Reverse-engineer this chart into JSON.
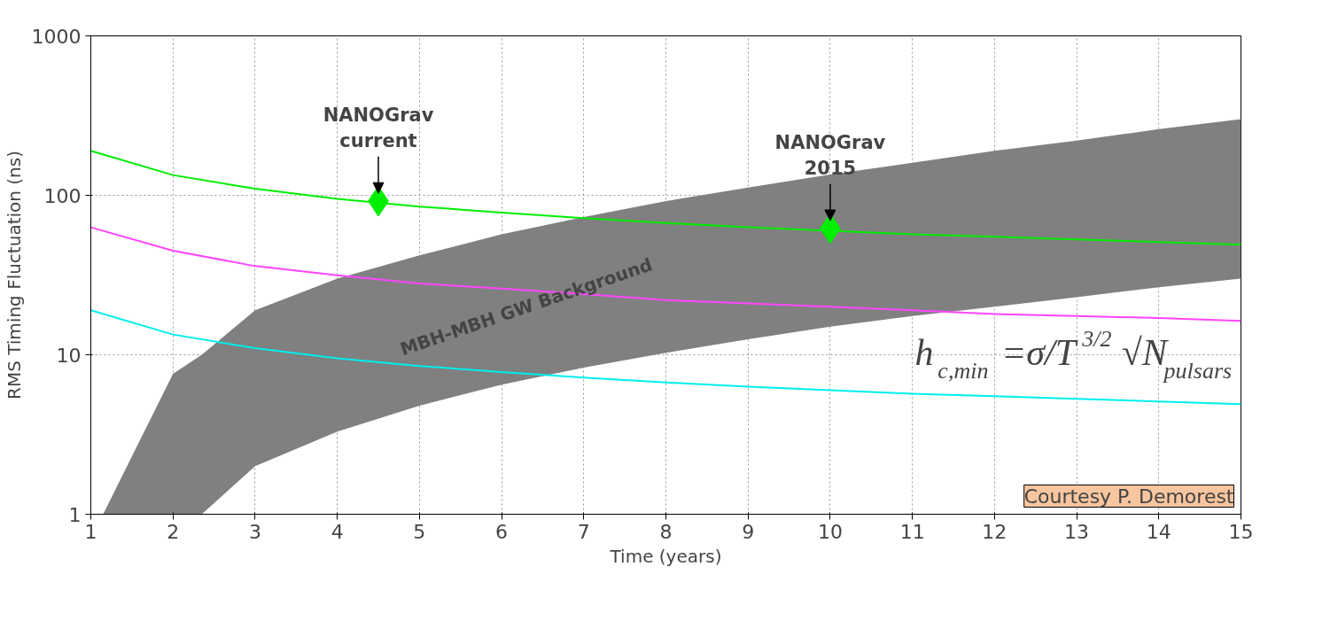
{
  "chart_data": {
    "type": "line",
    "xlabel": "Time (years)",
    "ylabel": "RMS Timing Fluctuation (ns)",
    "log": "y",
    "xlim": [
      1,
      15
    ],
    "ylim": [
      1,
      1000
    ],
    "xticks": [
      1,
      2,
      3,
      4,
      5,
      6,
      7,
      8,
      9,
      10,
      11,
      12,
      13,
      14,
      15
    ],
    "yticks": [
      1,
      10,
      100,
      1000
    ],
    "grid": true,
    "series": [
      {
        "color": "#808080",
        "x": [
          1.15,
          2,
          2.35,
          3,
          4,
          5,
          6,
          7,
          8,
          9,
          10,
          11,
          12,
          13,
          14,
          15
        ],
        "values": [
          null,
          null,
          null,
          null,
          null,
          null,
          null,
          null,
          null,
          null,
          null,
          null,
          null,
          null,
          null,
          null
        ],
        "lower": [
          1,
          1,
          1,
          2,
          3.3,
          4.8,
          6.5,
          8.3,
          10.3,
          12.5,
          15,
          17.5,
          20,
          23,
          26.5,
          30
        ],
        "upper": [
          1,
          7.6,
          10,
          19,
          30,
          42,
          57,
          73,
          92,
          112,
          135,
          160,
          190,
          220,
          260,
          300
        ]
      },
      {
        "color": "#00ee00",
        "x": [
          1,
          2,
          3,
          4,
          5,
          6,
          7,
          8,
          9,
          10,
          11,
          12,
          13,
          14,
          15
        ],
        "values": [
          190,
          134,
          110,
          95,
          85,
          78,
          72,
          67,
          63,
          60,
          57,
          55,
          53,
          51,
          49
        ]
      },
      {
        "color": "#ff44ff",
        "x": [
          1,
          2,
          3,
          4,
          5,
          6,
          7,
          8,
          9,
          10,
          11,
          12,
          13,
          14,
          15
        ],
        "values": [
          63,
          45,
          36,
          31.5,
          28,
          26,
          24,
          22,
          21,
          20,
          19,
          18,
          17.5,
          17,
          16.3
        ]
      },
      {
        "color": "#00eeee",
        "x": [
          1,
          2,
          3,
          4,
          5,
          6,
          7,
          8,
          9,
          10,
          11,
          12,
          13,
          14,
          15
        ],
        "values": [
          19,
          13.4,
          11,
          9.5,
          8.5,
          7.8,
          7.2,
          6.7,
          6.3,
          6,
          5.7,
          5.5,
          5.3,
          5.1,
          4.9
        ]
      },
      {
        "type": "scatter",
        "color": "#00ee00",
        "marker": "diamond",
        "x": [
          4.5,
          10
        ],
        "values": [
          92,
          62
        ]
      }
    ],
    "annotations": [
      {
        "text": "NANOGrav\ncurrent",
        "x": 4.5,
        "y": 92
      },
      {
        "text": "NANOGrav\n2015",
        "x": 10,
        "y": 62
      },
      "MBH-MBH GW Background",
      "h$_{c,min}$=σ/T$^{3/2}$√N$_{pulsars}$",
      "Courtesy P. Demorest"
    ]
  }
}
